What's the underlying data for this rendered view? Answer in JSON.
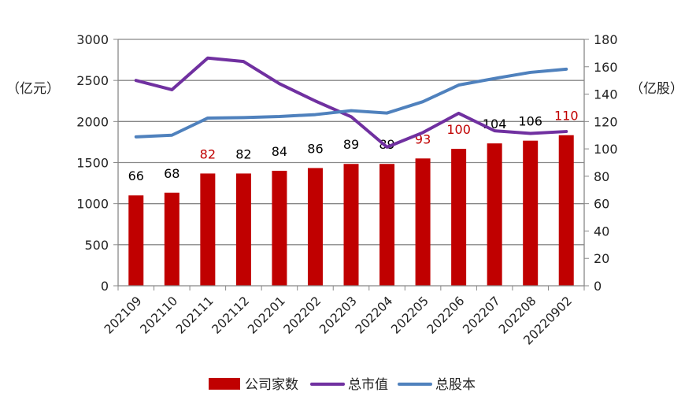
{
  "chart_data": {
    "type": "bar+line",
    "categories": [
      "202109",
      "202110",
      "202111",
      "202112",
      "202201",
      "202202",
      "202203",
      "202204",
      "202205",
      "202206",
      "202207",
      "202208",
      "20220902"
    ],
    "left_axis": {
      "label": "（亿元）",
      "range": [
        0,
        3000
      ],
      "ticks": [
        0,
        500,
        1000,
        1500,
        2000,
        2500,
        3000
      ]
    },
    "right_axis": {
      "label": "（亿股）",
      "range": [
        0,
        180
      ],
      "ticks": [
        0,
        20,
        40,
        60,
        80,
        100,
        120,
        140,
        160,
        180
      ]
    },
    "grid": true,
    "legend_position": "bottom",
    "series": [
      {
        "name": "公司家数",
        "type": "bar",
        "axis": "right",
        "color": "#C00000",
        "values": [
          66,
          68,
          82,
          82,
          84,
          86,
          89,
          89,
          93,
          100,
          104,
          106,
          110
        ],
        "label_colors": [
          "#000000",
          "#000000",
          "#C00000",
          "#000000",
          "#000000",
          "#000000",
          "#000000",
          "#000000",
          "#C00000",
          "#C00000",
          "#000000",
          "#000000",
          "#C00000"
        ]
      },
      {
        "name": "总市值",
        "type": "line",
        "axis": "left",
        "color": "#7030A0",
        "values": [
          2500,
          2387,
          2772,
          2730,
          2460,
          2250,
          2058,
          1688,
          1865,
          2100,
          1887,
          1855,
          1878
        ]
      },
      {
        "name": "总股本",
        "type": "line",
        "axis": "left",
        "color": "#4F81BD",
        "values": [
          1813,
          1833,
          2042,
          2048,
          2061,
          2084,
          2132,
          2103,
          2241,
          2444,
          2524,
          2598,
          2637
        ]
      }
    ]
  }
}
